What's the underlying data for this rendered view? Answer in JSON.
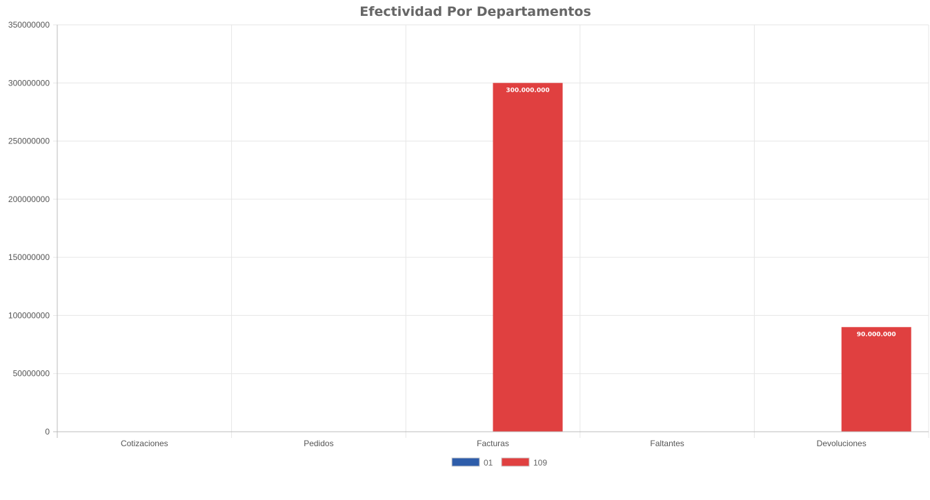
{
  "chart_data": {
    "type": "bar",
    "title": "Efectividad Por Departamentos",
    "categories": [
      "Cotizaciones",
      "Pedidos",
      "Facturas",
      "Faltantes",
      "Devoluciones"
    ],
    "series": [
      {
        "name": "01",
        "color": "#2e5daa",
        "values": [
          0,
          0,
          0,
          0,
          0
        ],
        "data_labels": [
          "",
          "",
          "",
          "",
          ""
        ]
      },
      {
        "name": "109",
        "color": "#e04040",
        "values": [
          0,
          0,
          300000000,
          0,
          90000000
        ],
        "data_labels": [
          "",
          "",
          "300.000.000",
          "",
          "90.000.000"
        ]
      }
    ],
    "ylim": [
      0,
      350000000
    ],
    "yticks": [
      0,
      50000000,
      100000000,
      150000000,
      200000000,
      250000000,
      300000000,
      350000000
    ],
    "ytick_labels": [
      "0",
      "50000000",
      "100000000",
      "150000000",
      "200000000",
      "250000000",
      "300000000",
      "350000000"
    ],
    "grid": true,
    "legend_position": "bottom"
  }
}
